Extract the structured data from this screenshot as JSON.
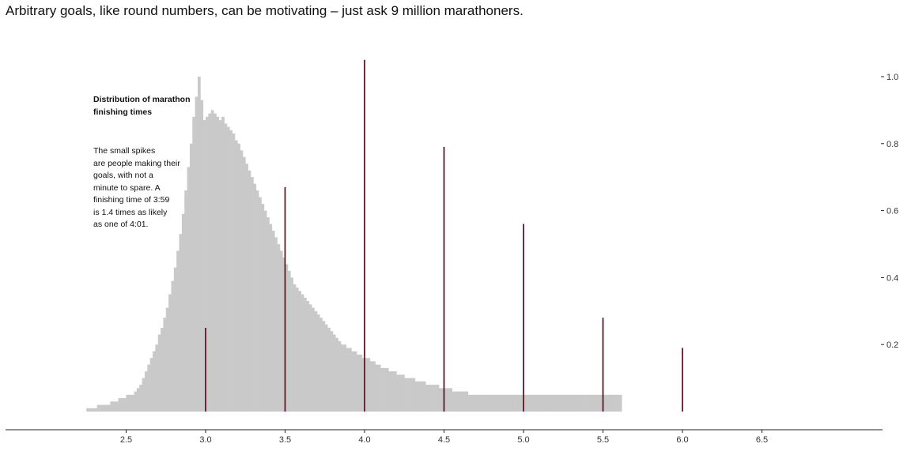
{
  "headline": "Arbitrary goals, like round numbers, can be motivating – just ask 9 million marathoners.",
  "annotation": {
    "title": "Distribution of marathon\nfinishing times",
    "body": "The small spikes\nare people making their\ngoals, with not a\nminute to spare. A\nfinishing time of 3:59\nis 1.4 times as likely\nas one of 4:01."
  },
  "colors": {
    "bar": "#c9c9c9",
    "spike": "#5a1a28",
    "axis": "#222222",
    "text": "#111111"
  },
  "chart_data": {
    "type": "bar",
    "title": "",
    "xlabel": "",
    "ylabel": "",
    "xlim": [
      2.0,
      7.0
    ],
    "ylim": [
      0,
      1.05
    ],
    "x_ticks": [
      2.5,
      3.0,
      3.5,
      4.0,
      4.5,
      5.0,
      5.5,
      6.0,
      6.5
    ],
    "x_tick_labels": [
      "2.5",
      "3.0",
      "3.5",
      "4.0",
      "4.5",
      "5.0",
      "5.5",
      "6.0",
      "6.5"
    ],
    "y_ticks": [
      0.2,
      0.4,
      0.6,
      0.8,
      1.0
    ],
    "y_tick_labels": [
      "0.2",
      "0.4",
      "0.6",
      "0.8",
      "1.0"
    ],
    "y_axis_side": "right",
    "grid": false,
    "bin_width_hours": 0.01667,
    "bins": {
      "start_hours": 2.25,
      "values": [
        0.01,
        0.01,
        0.01,
        0.01,
        0.02,
        0.02,
        0.02,
        0.02,
        0.02,
        0.03,
        0.03,
        0.03,
        0.04,
        0.04,
        0.04,
        0.05,
        0.05,
        0.05,
        0.06,
        0.07,
        0.08,
        0.1,
        0.12,
        0.14,
        0.16,
        0.18,
        0.2,
        0.23,
        0.25,
        0.28,
        0.31,
        0.35,
        0.39,
        0.43,
        0.48,
        0.53,
        0.59,
        0.66,
        0.73,
        0.8,
        0.88,
        0.94,
        1.0,
        0.93,
        0.87,
        0.88,
        0.89,
        0.9,
        0.89,
        0.88,
        0.87,
        0.88,
        0.86,
        0.85,
        0.84,
        0.83,
        0.81,
        0.8,
        0.78,
        0.76,
        0.74,
        0.72,
        0.7,
        0.68,
        0.66,
        0.64,
        0.62,
        0.6,
        0.58,
        0.56,
        0.54,
        0.52,
        0.5,
        0.48,
        0.46,
        0.44,
        0.42,
        0.4,
        0.38,
        0.37,
        0.36,
        0.35,
        0.34,
        0.33,
        0.32,
        0.31,
        0.3,
        0.29,
        0.28,
        0.27,
        0.26,
        0.25,
        0.24,
        0.23,
        0.22,
        0.21,
        0.2,
        0.2,
        0.19,
        0.19,
        0.18,
        0.18,
        0.17,
        0.17,
        0.16,
        0.16,
        0.16,
        0.15,
        0.15,
        0.14,
        0.14,
        0.13,
        0.13,
        0.13,
        0.12,
        0.12,
        0.12,
        0.11,
        0.11,
        0.11,
        0.1,
        0.1,
        0.1,
        0.1,
        0.09,
        0.09,
        0.09,
        0.09,
        0.08,
        0.08,
        0.08,
        0.08,
        0.08,
        0.07,
        0.07,
        0.07,
        0.07,
        0.07,
        0.06,
        0.06,
        0.06,
        0.06,
        0.06,
        0.06,
        0.05,
        0.05,
        0.05,
        0.05,
        0.05,
        0.05,
        0.05,
        0.05,
        0.05,
        0.05,
        0.05,
        0.05,
        0.05,
        0.05,
        0.05,
        0.05,
        0.05,
        0.05,
        0.05,
        0.05,
        0.05,
        0.05,
        0.05,
        0.05,
        0.05,
        0.05,
        0.05,
        0.05,
        0.05,
        0.05,
        0.05,
        0.05,
        0.05,
        0.05,
        0.05,
        0.05,
        0.05,
        0.05,
        0.05,
        0.05,
        0.05,
        0.05,
        0.05,
        0.05,
        0.05,
        0.05,
        0.05,
        0.05,
        0.05,
        0.05,
        0.05,
        0.05,
        0.05,
        0.05,
        0.05,
        0.05,
        0.05,
        0.05
      ]
    },
    "spikes": [
      {
        "x": 3.0,
        "value": 0.25
      },
      {
        "x": 3.5,
        "value": 0.67
      },
      {
        "x": 4.0,
        "value": 1.05
      },
      {
        "x": 4.5,
        "value": 0.79
      },
      {
        "x": 5.0,
        "value": 0.56
      },
      {
        "x": 5.5,
        "value": 0.28
      },
      {
        "x": 6.0,
        "value": 0.19
      }
    ]
  }
}
